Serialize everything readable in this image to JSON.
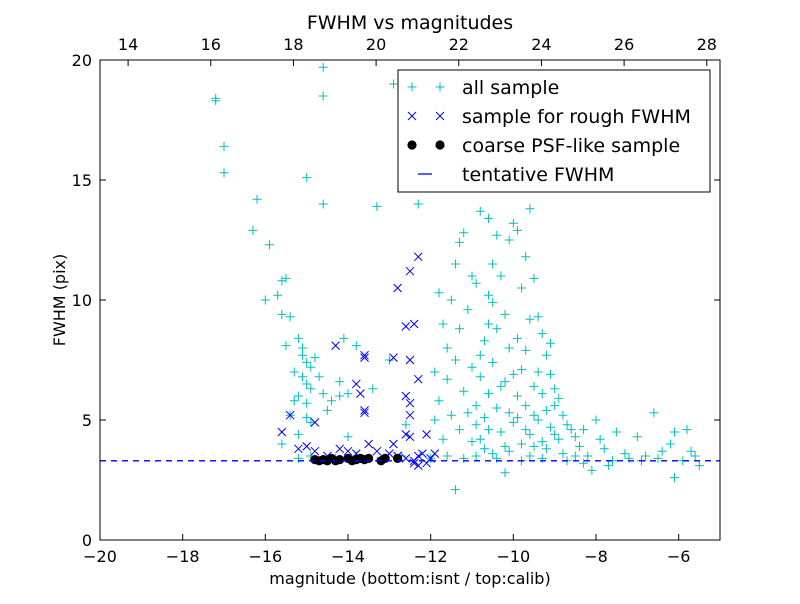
{
  "chart_data": {
    "type": "scatter",
    "title": "FWHM vs magnitudes",
    "xlabel": "magnitude (bottom:isnt / top:calib)",
    "ylabel": "FWHM (pix)",
    "xlim": [
      -20,
      -5
    ],
    "ylim": [
      0,
      20
    ],
    "top_axis_offset": 33.32,
    "xticks": [
      "−20",
      "−18",
      "−16",
      "−14",
      "−12",
      "−10",
      "−8",
      "−6"
    ],
    "xtick_values": [
      -20,
      -18,
      -16,
      -14,
      -12,
      -10,
      -8,
      -6
    ],
    "yticks": [
      "0",
      "5",
      "10",
      "15",
      "20"
    ],
    "ytick_values": [
      0,
      5,
      10,
      15,
      20
    ],
    "top_xticks": [
      "14",
      "16",
      "18",
      "20",
      "22",
      "24",
      "26",
      "28"
    ],
    "top_xtick_values": [
      14,
      16,
      18,
      20,
      22,
      24,
      26,
      28
    ],
    "grid": false,
    "legend_position": "top-right",
    "tentative_fwhm": 3.3,
    "series": [
      {
        "name": "all sample",
        "marker": "plus",
        "color": "#00bfbf",
        "points": [
          [
            -17.2,
            18.4
          ],
          [
            -17.2,
            18.3
          ],
          [
            -17.0,
            16.4
          ],
          [
            -17.0,
            15.3
          ],
          [
            -16.2,
            14.2
          ],
          [
            -16.3,
            12.9
          ],
          [
            -15.9,
            12.3
          ],
          [
            -16.0,
            10.0
          ],
          [
            -15.7,
            10.2
          ],
          [
            -15.6,
            10.8
          ],
          [
            -15.5,
            10.9
          ],
          [
            -15.6,
            9.4
          ],
          [
            -15.4,
            9.3
          ],
          [
            -15.5,
            8.1
          ],
          [
            -15.2,
            8.4
          ],
          [
            -15.1,
            8.0
          ],
          [
            -15.0,
            7.4
          ],
          [
            -14.9,
            7.2
          ],
          [
            -14.8,
            7.6
          ],
          [
            -15.1,
            6.8
          ],
          [
            -15.0,
            6.5
          ],
          [
            -14.9,
            6.3
          ],
          [
            -15.2,
            6.0
          ],
          [
            -15.3,
            5.8
          ],
          [
            -15.0,
            5.7
          ],
          [
            -14.6,
            6.1
          ],
          [
            -14.4,
            5.8
          ],
          [
            -14.2,
            6.0
          ],
          [
            -15.4,
            5.2
          ],
          [
            -15.0,
            5.1
          ],
          [
            -14.9,
            4.9
          ],
          [
            -15.6,
            4.0
          ],
          [
            -15.0,
            15.1
          ],
          [
            -14.6,
            19.7
          ],
          [
            -14.6,
            18.5
          ],
          [
            -14.6,
            14.0
          ],
          [
            -12.9,
            19.0
          ],
          [
            -12.4,
            19.2
          ],
          [
            -12.3,
            14.0
          ],
          [
            -13.3,
            13.9
          ],
          [
            -14.1,
            8.4
          ],
          [
            -13.8,
            8.1
          ],
          [
            -14.2,
            6.6
          ],
          [
            -14.0,
            6.1
          ],
          [
            -13.4,
            6.3
          ],
          [
            -13.0,
            7.5
          ],
          [
            -12.6,
            4.8
          ],
          [
            -15.3,
            7.0
          ],
          [
            -15.1,
            7.7
          ],
          [
            -14.7,
            6.8
          ],
          [
            -14.5,
            5.4
          ],
          [
            -15.2,
            4.4
          ],
          [
            -14.0,
            4.3
          ],
          [
            -11.8,
            10.3
          ],
          [
            -11.5,
            10.0
          ],
          [
            -11.6,
            8.0
          ],
          [
            -11.2,
            12.8
          ],
          [
            -11.3,
            12.4
          ],
          [
            -11.4,
            11.5
          ],
          [
            -11.0,
            11.0
          ],
          [
            -11.7,
            9.0
          ],
          [
            -11.9,
            7.0
          ],
          [
            -11.8,
            5.8
          ],
          [
            -11.6,
            6.7
          ],
          [
            -11.4,
            7.5
          ],
          [
            -11.3,
            8.8
          ],
          [
            -11.1,
            9.6
          ],
          [
            -11.0,
            7.2
          ],
          [
            -11.2,
            6.2
          ],
          [
            -11.5,
            5.2
          ],
          [
            -11.3,
            4.6
          ],
          [
            -11.7,
            4.2
          ],
          [
            -11.9,
            5.0
          ],
          [
            -11.4,
            2.1
          ],
          [
            -11.0,
            4.1
          ],
          [
            -10.9,
            5.6
          ],
          [
            -10.8,
            6.8
          ],
          [
            -10.7,
            8.3
          ],
          [
            -10.6,
            10.2
          ],
          [
            -10.5,
            11.5
          ],
          [
            -10.4,
            12.7
          ],
          [
            -10.8,
            13.7
          ],
          [
            -10.6,
            13.4
          ],
          [
            -10.3,
            11.0
          ],
          [
            -10.2,
            9.4
          ],
          [
            -10.1,
            8.0
          ],
          [
            -10.0,
            13.2
          ],
          [
            -10.1,
            12.5
          ],
          [
            -9.9,
            12.9
          ],
          [
            -9.6,
            13.8
          ],
          [
            -9.7,
            11.8
          ],
          [
            -9.8,
            10.5
          ],
          [
            -9.5,
            10.9
          ],
          [
            -9.4,
            9.3
          ],
          [
            -9.3,
            8.6
          ],
          [
            -9.2,
            7.7
          ],
          [
            -9.1,
            6.9
          ],
          [
            -9.0,
            6.3
          ],
          [
            -8.9,
            5.9
          ],
          [
            -8.8,
            5.2
          ],
          [
            -8.7,
            4.8
          ],
          [
            -8.6,
            4.6
          ],
          [
            -8.5,
            4.3
          ],
          [
            -10.9,
            4.8
          ],
          [
            -10.8,
            4.2
          ],
          [
            -10.7,
            5.1
          ],
          [
            -10.6,
            6.1
          ],
          [
            -10.5,
            7.4
          ],
          [
            -10.4,
            5.5
          ],
          [
            -10.3,
            4.5
          ],
          [
            -10.2,
            6.6
          ],
          [
            -10.1,
            5.3
          ],
          [
            -10.0,
            4.9
          ],
          [
            -9.9,
            6.0
          ],
          [
            -9.8,
            7.1
          ],
          [
            -9.7,
            5.6
          ],
          [
            -9.6,
            4.4
          ],
          [
            -9.5,
            6.4
          ],
          [
            -9.4,
            5.0
          ],
          [
            -9.3,
            4.1
          ],
          [
            -9.2,
            5.4
          ],
          [
            -9.1,
            4.7
          ],
          [
            -9.0,
            5.6
          ],
          [
            -8.9,
            4.2
          ],
          [
            -10.6,
            9.0
          ],
          [
            -10.4,
            8.8
          ],
          [
            -10.2,
            3.9
          ],
          [
            -10.0,
            6.9
          ],
          [
            -9.9,
            8.4
          ],
          [
            -9.7,
            7.9
          ],
          [
            -9.6,
            9.2
          ],
          [
            -9.5,
            5.2
          ],
          [
            -9.3,
            6.1
          ],
          [
            -9.8,
            4.0
          ],
          [
            -10.7,
            3.8
          ],
          [
            -10.5,
            3.6
          ],
          [
            -10.1,
            3.7
          ],
          [
            -9.6,
            3.5
          ],
          [
            -9.2,
            3.8
          ],
          [
            -8.8,
            3.6
          ],
          [
            -10.2,
            2.8
          ],
          [
            -10.8,
            7.7
          ],
          [
            -10.3,
            6.4
          ],
          [
            -9.9,
            5.1
          ],
          [
            -9.4,
            7.0
          ],
          [
            -9.1,
            8.2
          ],
          [
            -9.0,
            4.4
          ],
          [
            -10.5,
            9.9
          ],
          [
            -10.9,
            10.7
          ],
          [
            -11.1,
            5.3
          ],
          [
            -10.6,
            4.6
          ],
          [
            -9.7,
            4.6
          ],
          [
            -9.5,
            3.9
          ],
          [
            -8.4,
            3.9
          ],
          [
            -8.3,
            4.6
          ],
          [
            -8.2,
            3.5
          ],
          [
            -8.0,
            5.0
          ],
          [
            -7.9,
            4.2
          ],
          [
            -7.8,
            3.8
          ],
          [
            -7.6,
            3.3
          ],
          [
            -7.5,
            4.5
          ],
          [
            -7.3,
            3.6
          ],
          [
            -7.0,
            4.3
          ],
          [
            -6.8,
            3.5
          ],
          [
            -6.6,
            5.3
          ],
          [
            -6.4,
            3.7
          ],
          [
            -6.2,
            4.0
          ],
          [
            -6.1,
            4.5
          ],
          [
            -6.1,
            2.6
          ],
          [
            -5.8,
            4.6
          ],
          [
            -5.7,
            3.7
          ],
          [
            -5.6,
            3.5
          ],
          [
            -5.5,
            3.1
          ],
          [
            -8.3,
            3.2
          ],
          [
            -8.1,
            2.9
          ],
          [
            -7.7,
            3.1
          ],
          [
            -15.2,
            3.4
          ],
          [
            -14.9,
            3.5
          ],
          [
            -14.3,
            3.4
          ],
          [
            -13.8,
            3.5
          ],
          [
            -13.2,
            3.4
          ],
          [
            -12.7,
            3.5
          ],
          [
            -12.0,
            3.4
          ],
          [
            -11.6,
            3.5
          ],
          [
            -11.2,
            3.4
          ],
          [
            -10.9,
            3.5
          ],
          [
            -10.4,
            3.4
          ],
          [
            -9.8,
            3.3
          ],
          [
            -9.3,
            3.4
          ],
          [
            -8.7,
            3.3
          ],
          [
            -8.5,
            3.5
          ],
          [
            -7.2,
            3.4
          ],
          [
            -6.9,
            3.3
          ],
          [
            -6.5,
            3.4
          ],
          [
            -5.9,
            3.3
          ]
        ]
      },
      {
        "name": "sample for rough FWHM",
        "marker": "x",
        "color": "#0000ff",
        "points": [
          [
            -15.6,
            4.5
          ],
          [
            -15.4,
            5.2
          ],
          [
            -14.8,
            4.9
          ],
          [
            -14.3,
            8.1
          ],
          [
            -13.6,
            7.7
          ],
          [
            -13.6,
            7.6
          ],
          [
            -13.8,
            6.5
          ],
          [
            -13.7,
            6.1
          ],
          [
            -13.6,
            5.4
          ],
          [
            -13.6,
            5.3
          ],
          [
            -12.9,
            7.6
          ],
          [
            -12.8,
            10.5
          ],
          [
            -12.6,
            8.9
          ],
          [
            -12.4,
            9.0
          ],
          [
            -12.3,
            11.8
          ],
          [
            -12.5,
            11.2
          ],
          [
            -12.5,
            7.5
          ],
          [
            -12.3,
            6.7
          ],
          [
            -12.6,
            6.0
          ],
          [
            -12.5,
            5.7
          ],
          [
            -12.5,
            5.2
          ],
          [
            -12.6,
            4.4
          ],
          [
            -12.5,
            4.3
          ],
          [
            -12.9,
            4.0
          ],
          [
            -12.1,
            4.4
          ],
          [
            -13.5,
            4.0
          ],
          [
            -14.2,
            3.8
          ],
          [
            -14.8,
            3.7
          ],
          [
            -15.2,
            3.8
          ],
          [
            -13.0,
            3.6
          ],
          [
            -12.8,
            3.5
          ],
          [
            -12.6,
            3.4
          ],
          [
            -12.4,
            3.3
          ],
          [
            -12.3,
            3.5
          ],
          [
            -12.2,
            3.6
          ],
          [
            -12.0,
            3.4
          ],
          [
            -11.9,
            3.6
          ],
          [
            -12.3,
            3.1
          ],
          [
            -12.4,
            3.2
          ],
          [
            -12.1,
            3.2
          ],
          [
            -13.3,
            3.7
          ],
          [
            -13.8,
            3.6
          ],
          [
            -14.5,
            3.5
          ],
          [
            -14.0,
            3.7
          ],
          [
            -15.0,
            3.9
          ]
        ]
      },
      {
        "name": "coarse PSF-like sample",
        "marker": "dot",
        "color": "#000000",
        "points": [
          [
            -14.8,
            3.35
          ],
          [
            -14.7,
            3.3
          ],
          [
            -14.6,
            3.35
          ],
          [
            -14.5,
            3.3
          ],
          [
            -14.4,
            3.4
          ],
          [
            -14.3,
            3.3
          ],
          [
            -14.2,
            3.35
          ],
          [
            -14.0,
            3.4
          ],
          [
            -13.9,
            3.3
          ],
          [
            -13.8,
            3.35
          ],
          [
            -13.7,
            3.4
          ],
          [
            -13.6,
            3.35
          ],
          [
            -13.5,
            3.4
          ],
          [
            -13.2,
            3.3
          ],
          [
            -13.1,
            3.4
          ],
          [
            -12.8,
            3.4
          ]
        ]
      }
    ],
    "legend": [
      {
        "label": "all sample",
        "marker": "plus",
        "color": "#00bfbf"
      },
      {
        "label": "sample for rough FWHM",
        "marker": "x",
        "color": "#0000ff"
      },
      {
        "label": "coarse PSF-like sample",
        "marker": "dot",
        "color": "#000000"
      },
      {
        "label": "tentative FWHM",
        "marker": "dash",
        "color": "#0000ff"
      }
    ]
  }
}
